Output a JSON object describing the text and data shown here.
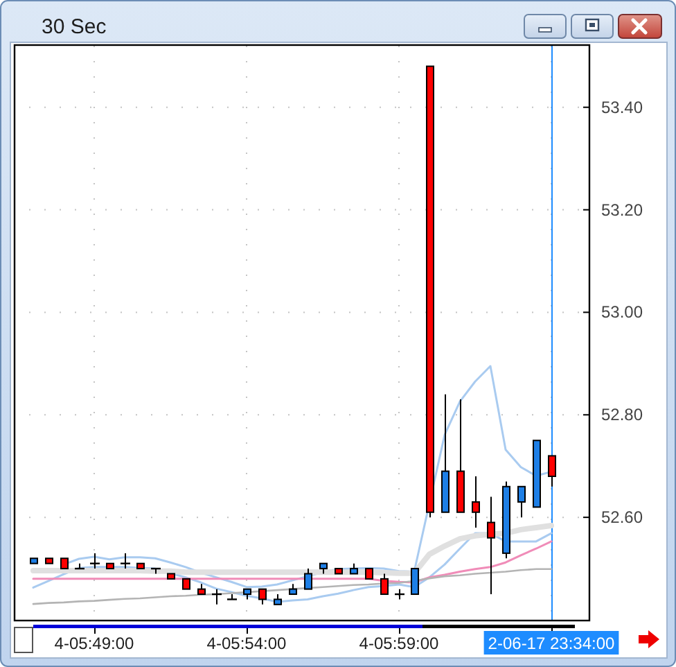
{
  "chart_data": {
    "type": "candlestick",
    "title": "30 Sec",
    "categories": [
      null,
      null,
      null,
      null,
      "4-05:49:00",
      null,
      null,
      null,
      null,
      null,
      null,
      null,
      null,
      null,
      "4-05:54:00",
      null,
      null,
      null,
      null,
      null,
      null,
      null,
      null,
      null,
      "4-05:59:00",
      null,
      null,
      null,
      null,
      null,
      null,
      null,
      null,
      null,
      "2-06-17 23:34:00"
    ],
    "ohlc": [
      [
        52.51,
        52.52,
        52.51,
        52.52
      ],
      [
        52.52,
        52.52,
        52.51,
        52.51
      ],
      [
        52.52,
        52.52,
        52.5,
        52.5
      ],
      [
        52.5,
        52.51,
        52.5,
        52.5
      ],
      [
        52.51,
        52.53,
        52.5,
        52.51
      ],
      [
        52.51,
        52.51,
        52.5,
        52.5
      ],
      [
        52.51,
        52.53,
        52.5,
        52.51
      ],
      [
        52.51,
        52.51,
        52.5,
        52.5
      ],
      [
        52.5,
        52.5,
        52.49,
        52.5
      ],
      [
        52.49,
        52.49,
        52.48,
        52.48
      ],
      [
        52.48,
        52.48,
        52.46,
        52.46
      ],
      [
        52.46,
        52.47,
        52.45,
        52.45
      ],
      [
        52.45,
        52.46,
        52.43,
        52.45
      ],
      [
        52.44,
        52.45,
        52.44,
        52.44
      ],
      [
        52.45,
        52.46,
        52.44,
        52.46
      ],
      [
        52.46,
        52.46,
        52.43,
        52.44
      ],
      [
        52.43,
        52.45,
        52.43,
        52.44
      ],
      [
        52.45,
        52.47,
        52.45,
        52.46
      ],
      [
        52.46,
        52.5,
        52.46,
        52.49
      ],
      [
        52.5,
        52.51,
        52.49,
        52.51
      ],
      [
        52.5,
        52.5,
        52.49,
        52.49
      ],
      [
        52.49,
        52.51,
        52.49,
        52.5
      ],
      [
        52.5,
        52.5,
        52.48,
        52.48
      ],
      [
        52.48,
        52.49,
        52.45,
        52.45
      ],
      [
        52.45,
        52.46,
        52.44,
        52.45
      ],
      [
        52.45,
        52.5,
        52.45,
        52.5
      ],
      [
        53.48,
        53.48,
        52.6,
        52.61
      ],
      [
        52.61,
        52.84,
        52.61,
        52.69
      ],
      [
        52.69,
        52.83,
        52.61,
        52.61
      ],
      [
        52.63,
        52.68,
        52.58,
        52.61
      ],
      [
        52.59,
        52.64,
        52.45,
        52.56
      ],
      [
        52.53,
        52.67,
        52.52,
        52.66
      ],
      [
        52.63,
        52.66,
        52.6,
        52.66
      ],
      [
        52.62,
        52.75,
        52.62,
        52.75
      ],
      [
        52.72,
        52.72,
        52.66,
        52.68
      ]
    ],
    "colors": [
      "#1e7fe6",
      "#ff0000",
      "#ff0000",
      "#000000",
      "#000000",
      "#ff0000",
      "#000000",
      "#ff0000",
      "#000000",
      "#ff0000",
      "#ff0000",
      "#ff0000",
      "#000000",
      "#000000",
      "#1e7fe6",
      "#ff0000",
      "#1e7fe6",
      "#1e7fe6",
      "#1e7fe6",
      "#1e7fe6",
      "#ff0000",
      "#1e7fe6",
      "#ff0000",
      "#ff0000",
      "#000000",
      "#1e7fe6",
      "#ff0000",
      "#1e7fe6",
      "#ff0000",
      "#ff0000",
      "#ff0000",
      "#1e7fe6",
      "#1e7fe6",
      "#1e7fe6",
      "#ff0000"
    ],
    "series": [
      {
        "type": "line",
        "color": "#a9cbf0",
        "values": [
          null,
          null,
          52.508,
          52.519,
          52.523,
          52.518,
          52.522,
          52.522,
          52.52,
          52.512,
          52.503,
          52.492,
          52.483,
          52.474,
          52.464,
          52.465,
          52.469,
          52.477,
          52.485,
          52.493,
          52.499,
          52.5,
          52.501,
          52.5,
          52.495,
          52.494,
          null,
          52.761,
          52.826,
          52.865,
          52.895,
          52.732,
          52.698,
          52.681,
          52.689
        ]
      },
      {
        "type": "line",
        "color": "#a9cbf0",
        "values": [
          52.463,
          52.476,
          52.489,
          52.501,
          52.503,
          52.503,
          52.503,
          52.501,
          52.5,
          52.491,
          52.483,
          52.473,
          52.461,
          52.454,
          52.447,
          52.442,
          52.435,
          52.438,
          52.44,
          52.446,
          52.451,
          52.458,
          52.464,
          52.466,
          52.469,
          52.464,
          52.483,
          52.508,
          52.539,
          52.569,
          52.569,
          52.553,
          52.553,
          52.553,
          52.569
        ]
      },
      {
        "type": "line",
        "color": "#f08cb8",
        "values": [
          52.48,
          52.48,
          52.48,
          52.48,
          52.48,
          52.48,
          52.48,
          52.48,
          52.48,
          52.48,
          52.48,
          52.48,
          52.48,
          52.48,
          52.48,
          52.48,
          52.48,
          52.48,
          52.48,
          52.48,
          52.48,
          52.48,
          52.48,
          52.476,
          52.474,
          52.473,
          52.483,
          52.488,
          52.494,
          52.499,
          52.503,
          52.512,
          52.526,
          52.539,
          52.553
        ]
      },
      {
        "type": "line",
        "color": "#e0e0e0",
        "values": [
          52.496,
          52.496,
          52.496,
          52.496,
          52.496,
          52.496,
          52.496,
          52.496,
          52.495,
          52.495,
          52.493,
          52.493,
          52.493,
          52.493,
          52.493,
          52.493,
          52.493,
          52.493,
          52.493,
          52.493,
          52.493,
          52.493,
          52.493,
          52.492,
          52.491,
          52.491,
          52.528,
          52.544,
          52.558,
          52.564,
          52.567,
          52.569,
          52.576,
          52.58,
          52.584
        ]
      },
      {
        "type": "line",
        "color": "#b4b4b4",
        "values": [
          52.431,
          52.433,
          52.434,
          52.436,
          52.437,
          52.439,
          52.441,
          52.442,
          52.444,
          52.446,
          52.447,
          52.449,
          52.45,
          52.452,
          52.454,
          52.456,
          52.458,
          52.46,
          52.462,
          52.464,
          52.466,
          52.468,
          52.469,
          52.471,
          52.472,
          52.476,
          52.481,
          52.485,
          52.487,
          52.49,
          52.492,
          52.494,
          52.497,
          52.499,
          52.499
        ]
      }
    ],
    "ylim": [
      52.4,
      53.52
    ],
    "yticks": [
      {
        "value": 52.6,
        "label": "52.60"
      },
      {
        "value": 52.8,
        "label": "52.80"
      },
      {
        "value": 53.0,
        "label": "53.00"
      },
      {
        "value": 53.2,
        "label": "53.20"
      },
      {
        "value": 53.4,
        "label": "53.40"
      }
    ],
    "grid": true,
    "ref_lines": [
      {
        "axis": "x",
        "value": "2-06-17 23:34:00",
        "color": "#1e8cff"
      }
    ]
  }
}
